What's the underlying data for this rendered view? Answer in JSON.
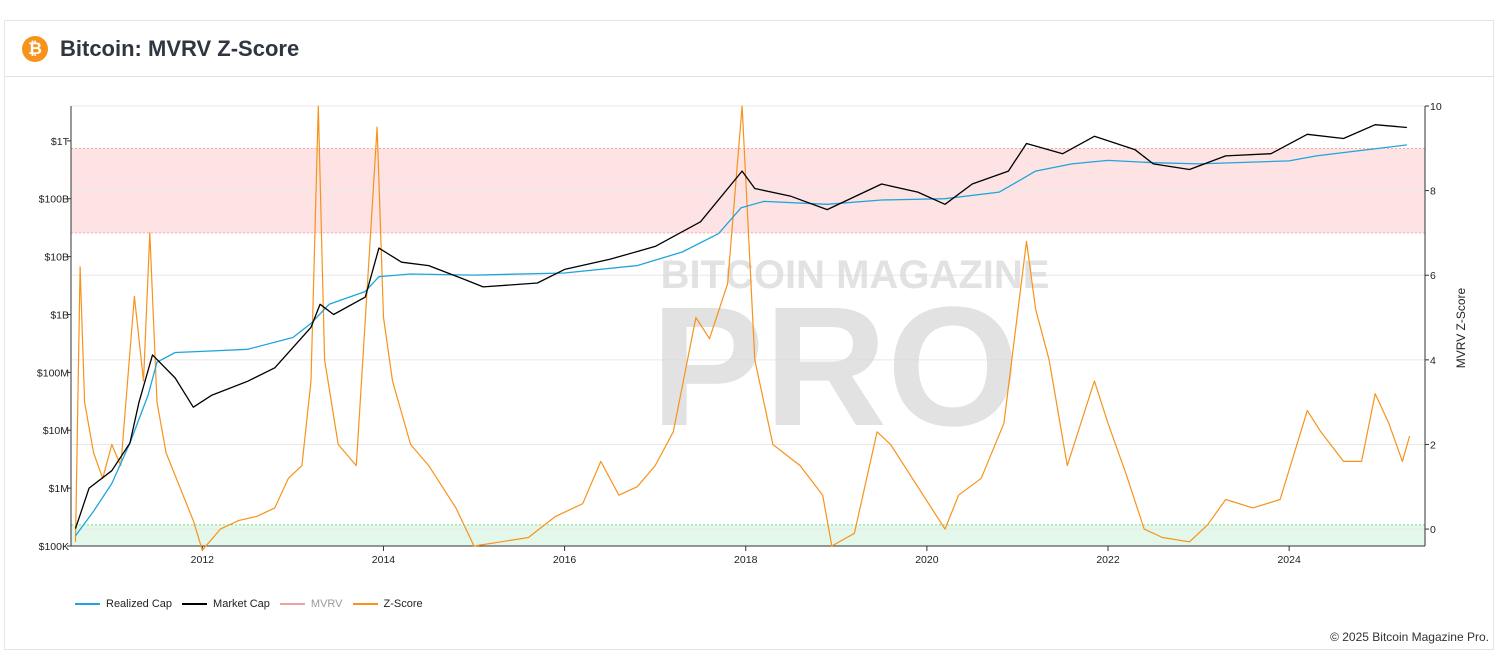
{
  "header": {
    "title": "Bitcoin: MVRV Z-Score",
    "logo_glyph": "₿",
    "logo_icon": "bitcoin-logo-icon"
  },
  "watermark": {
    "line1": "BITCOIN MAGAZINE",
    "line2": "PRO"
  },
  "footer": {
    "copyright": "© 2025 Bitcoin Magazine Pro."
  },
  "colors": {
    "realized_cap": "#1fa5dc",
    "market_cap": "#000000",
    "mvrv": "#f0a0a0",
    "zscore": "#f7931a",
    "red_zone": "#fde3e3",
    "green_zone": "#e3f8ea",
    "brand": "#f7931a"
  },
  "chart_data": {
    "type": "line",
    "title": "Bitcoin: MVRV Z-Score",
    "legend_position": "bottom-left",
    "grid": true,
    "x_ticks": [
      "2012",
      "2014",
      "2016",
      "2018",
      "2020",
      "2022",
      "2024"
    ],
    "y_left": {
      "scale": "log",
      "ticks": [
        "$100K",
        "$1M",
        "$10M",
        "$100M",
        "$1B",
        "$10B",
        "$100B",
        "$1T"
      ],
      "range": [
        100000,
        4000000000000
      ]
    },
    "y_right": {
      "label": "MVRV Z-Score",
      "ticks": [
        "0",
        "2",
        "4",
        "6",
        "8",
        "10"
      ],
      "range": [
        -0.4,
        10
      ]
    },
    "zones": [
      {
        "name": "red",
        "axis": "right",
        "from": 7.0,
        "to": 9.0
      },
      {
        "name": "green",
        "axis": "right",
        "from": -0.4,
        "to": 0.1
      }
    ],
    "series": [
      {
        "name": "Realized Cap",
        "axis": "left",
        "points": [
          [
            2010.6,
            150000
          ],
          [
            2010.8,
            400000
          ],
          [
            2011.0,
            1200000
          ],
          [
            2011.2,
            6000000
          ],
          [
            2011.4,
            40000000
          ],
          [
            2011.5,
            150000000
          ],
          [
            2011.7,
            220000000
          ],
          [
            2012.0,
            230000000
          ],
          [
            2012.5,
            250000000
          ],
          [
            2013.0,
            400000000
          ],
          [
            2013.2,
            700000000
          ],
          [
            2013.4,
            1500000000
          ],
          [
            2013.8,
            2500000000
          ],
          [
            2013.95,
            4500000000
          ],
          [
            2014.3,
            5000000000
          ],
          [
            2015.0,
            4800000000
          ],
          [
            2016.0,
            5200000000
          ],
          [
            2016.8,
            7000000000
          ],
          [
            2017.3,
            12000000000
          ],
          [
            2017.7,
            25000000000
          ],
          [
            2017.95,
            70000000000
          ],
          [
            2018.2,
            90000000000
          ],
          [
            2018.9,
            80000000000
          ],
          [
            2019.5,
            95000000000
          ],
          [
            2020.2,
            100000000000
          ],
          [
            2020.8,
            130000000000
          ],
          [
            2021.2,
            300000000000
          ],
          [
            2021.6,
            400000000000
          ],
          [
            2022.0,
            460000000000
          ],
          [
            2022.5,
            420000000000
          ],
          [
            2023.0,
            400000000000
          ],
          [
            2024.0,
            450000000000
          ],
          [
            2024.3,
            550000000000
          ],
          [
            2025.3,
            850000000000
          ]
        ]
      },
      {
        "name": "Market Cap",
        "axis": "left",
        "points": [
          [
            2010.6,
            200000
          ],
          [
            2010.75,
            1000000
          ],
          [
            2011.0,
            2000000
          ],
          [
            2011.2,
            6000000
          ],
          [
            2011.3,
            30000000
          ],
          [
            2011.45,
            200000000
          ],
          [
            2011.7,
            80000000
          ],
          [
            2011.9,
            25000000
          ],
          [
            2012.1,
            40000000
          ],
          [
            2012.5,
            70000000
          ],
          [
            2012.8,
            120000000
          ],
          [
            2013.2,
            600000000
          ],
          [
            2013.3,
            1500000000
          ],
          [
            2013.45,
            1000000000
          ],
          [
            2013.8,
            2000000000
          ],
          [
            2013.95,
            14000000000
          ],
          [
            2014.2,
            8000000000
          ],
          [
            2014.5,
            7000000000
          ],
          [
            2014.9,
            4000000000
          ],
          [
            2015.1,
            3000000000
          ],
          [
            2015.7,
            3500000000
          ],
          [
            2016.0,
            6000000000
          ],
          [
            2016.5,
            9000000000
          ],
          [
            2017.0,
            15000000000
          ],
          [
            2017.5,
            40000000000
          ],
          [
            2017.96,
            300000000000
          ],
          [
            2018.1,
            150000000000
          ],
          [
            2018.5,
            110000000000
          ],
          [
            2018.9,
            65000000000
          ],
          [
            2019.5,
            180000000000
          ],
          [
            2019.9,
            130000000000
          ],
          [
            2020.2,
            80000000000
          ],
          [
            2020.5,
            180000000000
          ],
          [
            2020.9,
            300000000000
          ],
          [
            2021.1,
            900000000000
          ],
          [
            2021.5,
            600000000000
          ],
          [
            2021.85,
            1200000000000
          ],
          [
            2022.3,
            700000000000
          ],
          [
            2022.5,
            400000000000
          ],
          [
            2022.9,
            320000000000
          ],
          [
            2023.3,
            550000000000
          ],
          [
            2023.8,
            600000000000
          ],
          [
            2024.2,
            1300000000000
          ],
          [
            2024.6,
            1100000000000
          ],
          [
            2024.95,
            1900000000000
          ],
          [
            2025.3,
            1700000000000
          ]
        ]
      },
      {
        "name": "MVRV",
        "axis": "right",
        "hidden": true,
        "points": []
      },
      {
        "name": "Z-Score",
        "axis": "right",
        "points": [
          [
            2010.6,
            -0.3
          ],
          [
            2010.65,
            6.2
          ],
          [
            2010.7,
            3.0
          ],
          [
            2010.8,
            1.8
          ],
          [
            2010.9,
            1.2
          ],
          [
            2011.0,
            2.0
          ],
          [
            2011.1,
            1.5
          ],
          [
            2011.25,
            5.5
          ],
          [
            2011.35,
            3.5
          ],
          [
            2011.42,
            7.0
          ],
          [
            2011.5,
            3.0
          ],
          [
            2011.6,
            1.8
          ],
          [
            2011.75,
            1.0
          ],
          [
            2011.9,
            0.2
          ],
          [
            2012.0,
            -0.5
          ],
          [
            2012.2,
            0.0
          ],
          [
            2012.4,
            0.2
          ],
          [
            2012.6,
            0.3
          ],
          [
            2012.8,
            0.5
          ],
          [
            2012.95,
            1.2
          ],
          [
            2013.1,
            1.5
          ],
          [
            2013.2,
            3.5
          ],
          [
            2013.28,
            10.0
          ],
          [
            2013.35,
            4.0
          ],
          [
            2013.5,
            2.0
          ],
          [
            2013.7,
            1.5
          ],
          [
            2013.93,
            9.5
          ],
          [
            2014.0,
            5.0
          ],
          [
            2014.1,
            3.5
          ],
          [
            2014.3,
            2.0
          ],
          [
            2014.5,
            1.5
          ],
          [
            2014.8,
            0.5
          ],
          [
            2015.0,
            -0.4
          ],
          [
            2015.3,
            -0.3
          ],
          [
            2015.6,
            -0.2
          ],
          [
            2015.9,
            0.3
          ],
          [
            2016.2,
            0.6
          ],
          [
            2016.4,
            1.6
          ],
          [
            2016.6,
            0.8
          ],
          [
            2016.8,
            1.0
          ],
          [
            2017.0,
            1.5
          ],
          [
            2017.2,
            2.3
          ],
          [
            2017.45,
            5.0
          ],
          [
            2017.6,
            4.5
          ],
          [
            2017.8,
            5.8
          ],
          [
            2017.96,
            10.0
          ],
          [
            2018.1,
            4.0
          ],
          [
            2018.3,
            2.0
          ],
          [
            2018.6,
            1.5
          ],
          [
            2018.85,
            0.8
          ],
          [
            2018.95,
            -0.4
          ],
          [
            2019.2,
            -0.1
          ],
          [
            2019.45,
            2.3
          ],
          [
            2019.6,
            2.0
          ],
          [
            2019.9,
            1.0
          ],
          [
            2020.2,
            0.0
          ],
          [
            2020.35,
            0.8
          ],
          [
            2020.6,
            1.2
          ],
          [
            2020.85,
            2.5
          ],
          [
            2021.1,
            6.8
          ],
          [
            2021.2,
            5.2
          ],
          [
            2021.35,
            4.0
          ],
          [
            2021.55,
            1.5
          ],
          [
            2021.85,
            3.5
          ],
          [
            2022.0,
            2.5
          ],
          [
            2022.2,
            1.3
          ],
          [
            2022.4,
            0.0
          ],
          [
            2022.6,
            -0.2
          ],
          [
            2022.9,
            -0.3
          ],
          [
            2023.1,
            0.1
          ],
          [
            2023.3,
            0.7
          ],
          [
            2023.6,
            0.5
          ],
          [
            2023.9,
            0.7
          ],
          [
            2024.2,
            2.8
          ],
          [
            2024.35,
            2.3
          ],
          [
            2024.6,
            1.6
          ],
          [
            2024.8,
            1.6
          ],
          [
            2024.95,
            3.2
          ],
          [
            2025.1,
            2.5
          ],
          [
            2025.25,
            1.6
          ],
          [
            2025.33,
            2.2
          ]
        ]
      }
    ]
  }
}
